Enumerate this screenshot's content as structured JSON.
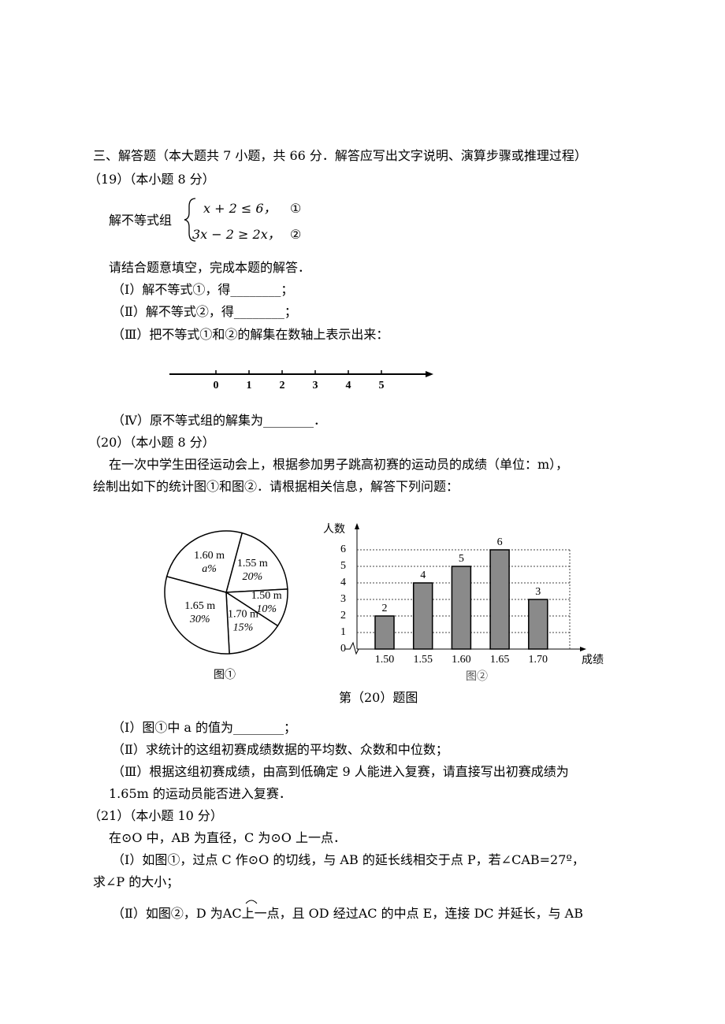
{
  "section_title": "三、解答题（本大题共 7 小题，共 66 分．解答应写出文字说明、演算步骤或推理过程）",
  "q19": {
    "header": "（19）（本小题 8 分）",
    "intro": "解不等式组",
    "eq1": "x + 2 ≤ 6，",
    "eq1_num": "①",
    "eq2": "3x − 2 ≥ 2x，",
    "eq2_num": "②",
    "prompt": "请结合题意填空，完成本题的解答．",
    "parts": [
      "（Ⅰ）解不等式①，得________；",
      "（Ⅱ）解不等式②，得________；",
      "（Ⅲ）把不等式①和②的解集在数轴上表示出来："
    ],
    "number_line_ticks": [
      0,
      1,
      2,
      3,
      4,
      5
    ],
    "part4": "（Ⅳ）原不等式组的解集为________．"
  },
  "q20": {
    "header": "（20）（本小题 8 分）",
    "paragraph": [
      "在一次中学生田径运动会上，根据参加男子跳高初赛的运动员的成绩（单位：m），",
      "绘制出如下的统计图①和图②．请根据相关信息，解答下列问题："
    ],
    "pie": {
      "type": "pie",
      "caption": "图①",
      "slices": [
        {
          "label": "1.55 m",
          "value": 20,
          "value_label": "20%"
        },
        {
          "label": "1.50 m",
          "value": 10,
          "value_label": "10%"
        },
        {
          "label": "1.70 m",
          "value": 15,
          "value_label": "15%"
        },
        {
          "label": "1.65 m",
          "value": 30,
          "value_label": "30%"
        },
        {
          "label": "1.60 m",
          "value": 25,
          "value_label": "a%"
        }
      ]
    },
    "bar": {
      "type": "bar",
      "caption": "图②",
      "y_label": "人数",
      "x_label": "成绩",
      "categories": [
        "1.50",
        "1.55",
        "1.60",
        "1.65",
        "1.70"
      ],
      "values": [
        2,
        4,
        5,
        6,
        3
      ],
      "ylim": [
        0,
        7
      ],
      "yticks": [
        0,
        1,
        2,
        3,
        4,
        5,
        6
      ],
      "grid": true,
      "color": "#8a8a8a"
    },
    "figure_caption": "第（20）题图",
    "parts": [
      "（Ⅰ）图①中 a 的值为________；",
      "（Ⅱ）求统计的这组初赛成绩数据的平均数、众数和中位数；",
      "（Ⅲ）根据这组初赛成绩，由高到低确定 9 人能进入复赛，请直接写出初赛成绩为"
    ],
    "part3_cont": "1.65m 的运动员能否进入复赛．"
  },
  "q21": {
    "header": "（21）（本小题 10 分）",
    "intro": "在⊙O 中，AB 为直径，C 为⊙O 上一点．",
    "part1": "（Ⅰ）如图①，过点 C 作⊙O 的切线，与 AB 的延长线相交于点 P，若∠CAB=27º，",
    "part1_cont": "求∠P 的大小；",
    "part2": "（Ⅱ）如图②，D 为AC上一点，且 OD 经过AC 的中点 E，连接 DC 并延长，与 AB"
  }
}
